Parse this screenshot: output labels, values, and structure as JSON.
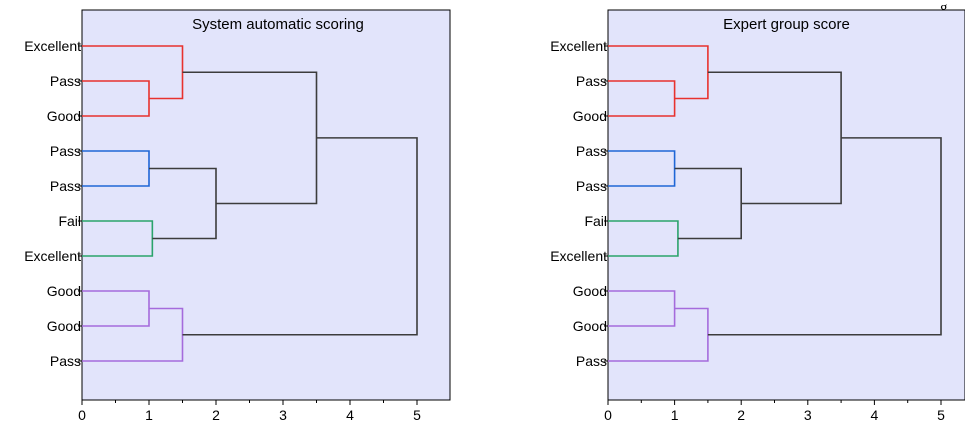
{
  "corner_text": "g",
  "chart_data": [
    {
      "type": "dendrogram",
      "title": "System automatic scoring",
      "xlim": [
        0,
        5.5
      ],
      "xticks": [
        0,
        1,
        2,
        3,
        4,
        5
      ],
      "xticklabels": [
        "0",
        "1",
        "2",
        "3",
        "4",
        "5"
      ],
      "leaves": [
        "Excellent",
        "Pass",
        "Good",
        "Pass",
        "Pass",
        "Fail",
        "Excellent",
        "Good",
        "Good",
        "Pass"
      ],
      "colors": {
        "red": "#e8322e",
        "blue": "#1f66d6",
        "green": "#2aa36b",
        "purple": "#a56bdc",
        "link": "#3c3c3c",
        "panel": "#e2e4fb"
      },
      "merges": [
        {
          "a": 1,
          "b": 2,
          "height": 1.0,
          "color": "red"
        },
        {
          "a": 0,
          "b": "m0",
          "height": 1.5,
          "color": "red"
        },
        {
          "a": 3,
          "b": 4,
          "height": 1.0,
          "color": "blue"
        },
        {
          "a": 5,
          "b": 6,
          "height": 1.05,
          "color": "green"
        },
        {
          "a": "m2",
          "b": "m3",
          "height": 2.0,
          "color": "link"
        },
        {
          "a": "m1",
          "b": "m4",
          "height": 3.5,
          "color": "link"
        },
        {
          "a": 7,
          "b": 8,
          "height": 1.0,
          "color": "purple"
        },
        {
          "a": 9,
          "b": "m6",
          "height": 1.5,
          "color": "purple"
        },
        {
          "a": "m5",
          "b": "m7",
          "height": 5.0,
          "color": "link"
        }
      ]
    },
    {
      "type": "dendrogram",
      "title": "Expert group score",
      "xlim": [
        0,
        5.5
      ],
      "xticks": [
        0,
        1,
        2,
        3,
        4,
        5
      ],
      "xticklabels": [
        "0",
        "1",
        "2",
        "3",
        "4",
        "5"
      ],
      "leaves": [
        "Excellent",
        "Pass",
        "Good",
        "Pass",
        "Pass",
        "Fail",
        "Excellent",
        "Good",
        "Good",
        "Pass"
      ],
      "colors": {
        "red": "#e8322e",
        "blue": "#1f66d6",
        "green": "#2aa36b",
        "purple": "#a56bdc",
        "link": "#3c3c3c",
        "panel": "#e2e4fb"
      },
      "merges": [
        {
          "a": 1,
          "b": 2,
          "height": 1.0,
          "color": "red"
        },
        {
          "a": 0,
          "b": "m0",
          "height": 1.5,
          "color": "red"
        },
        {
          "a": 3,
          "b": 4,
          "height": 1.0,
          "color": "blue"
        },
        {
          "a": 5,
          "b": 6,
          "height": 1.05,
          "color": "green"
        },
        {
          "a": "m2",
          "b": "m3",
          "height": 2.0,
          "color": "link"
        },
        {
          "a": "m1",
          "b": "m4",
          "height": 3.5,
          "color": "link"
        },
        {
          "a": 7,
          "b": 8,
          "height": 1.0,
          "color": "purple"
        },
        {
          "a": 9,
          "b": "m6",
          "height": 1.5,
          "color": "purple"
        },
        {
          "a": "m5",
          "b": "m7",
          "height": 5.0,
          "color": "link"
        }
      ]
    }
  ]
}
